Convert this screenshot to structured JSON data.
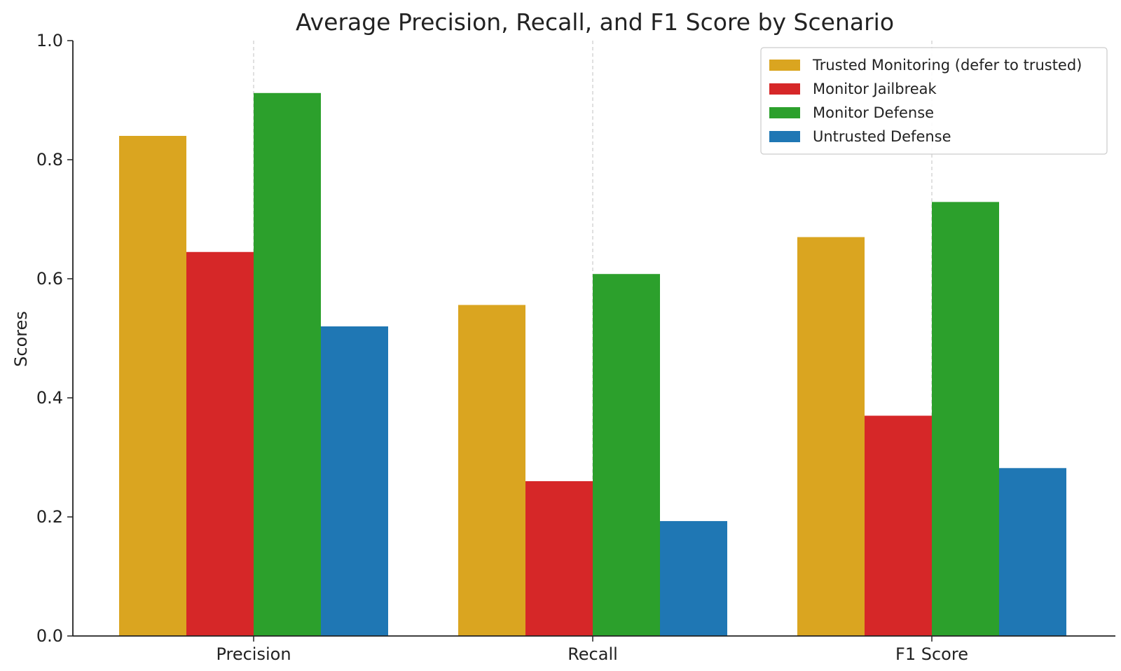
{
  "chart_data": {
    "type": "bar",
    "title": "Average Precision, Recall, and F1 Score by Scenario",
    "xlabel": "",
    "ylabel": "Scores",
    "categories": [
      "Precision",
      "Recall",
      "F1 Score"
    ],
    "ylim": [
      0,
      1.0
    ],
    "yticks": [
      "0.0",
      "0.2",
      "0.4",
      "0.6",
      "0.8",
      "1.0"
    ],
    "grid": "x-dashed",
    "legend_position": "top-right",
    "series": [
      {
        "name": "Trusted Monitoring (defer to trusted)",
        "color": "#DAA520",
        "values": [
          0.84,
          0.556,
          0.67
        ]
      },
      {
        "name": "Monitor Jailbreak",
        "color": "#D62728",
        "values": [
          0.645,
          0.26,
          0.37
        ]
      },
      {
        "name": "Monitor Defense",
        "color": "#2CA02C",
        "values": [
          0.912,
          0.608,
          0.729
        ]
      },
      {
        "name": "Untrusted Defense",
        "color": "#1F77B4",
        "values": [
          0.52,
          0.193,
          0.282
        ]
      }
    ]
  }
}
